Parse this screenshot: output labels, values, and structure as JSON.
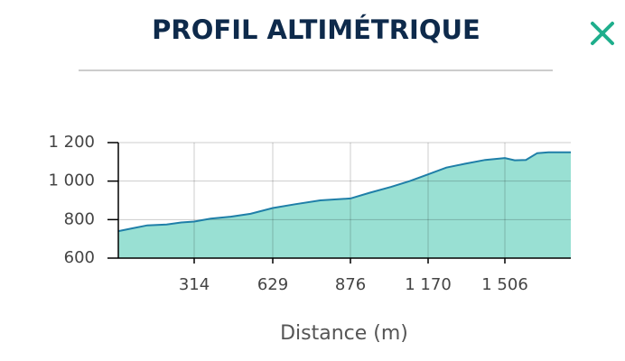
{
  "header": {
    "title": "PROFIL ALTIMÉTRIQUE"
  },
  "chart_data": {
    "type": "area",
    "xlabel": "Distance (m)",
    "x": [
      0,
      60,
      120,
      200,
      260,
      314,
      380,
      460,
      540,
      629,
      700,
      780,
      876,
      950,
      1030,
      1100,
      1170,
      1250,
      1330,
      1420,
      1506,
      1550,
      1600,
      1650,
      1700,
      1800
    ],
    "series": [
      {
        "color": "#1f7fa8",
        "fill": "#99e0d3",
        "values": [
          740,
          755,
          770,
          775,
          785,
          790,
          805,
          815,
          830,
          860,
          880,
          900,
          910,
          940,
          970,
          1000,
          1035,
          1070,
          1090,
          1110,
          1120,
          1108,
          1110,
          1145,
          1150,
          1150
        ]
      }
    ],
    "xlim": [
      0,
      1800
    ],
    "xticks": [
      314,
      629,
      876,
      {
        "value": 1170,
        "label": "1 170"
      },
      {
        "value": 1506,
        "label": "1 506"
      }
    ],
    "ylim": [
      600,
      1200
    ],
    "yticks": [
      600,
      800,
      {
        "value": 1000,
        "label": "1 000"
      },
      {
        "value": 1200,
        "label": "1 200"
      }
    ],
    "grid": true
  }
}
